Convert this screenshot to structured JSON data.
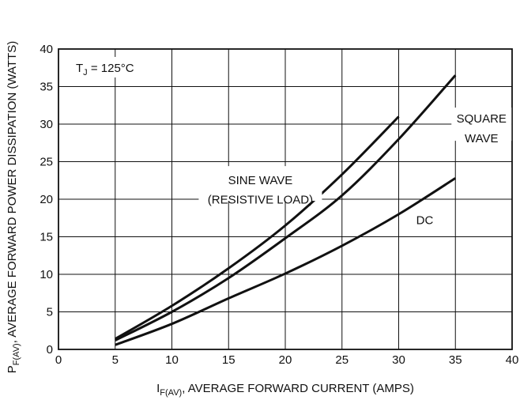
{
  "chart_data": {
    "type": "line",
    "title": "",
    "xlabel": {
      "base": "I",
      "sub": "F(AV)",
      "rest": ", AVERAGE FORWARD CURRENT (AMPS)"
    },
    "ylabel": {
      "base": "P",
      "sub": "F(AV)",
      "rest": ", AVERAGE FORWARD POWER DISSIPATION (WATTS)"
    },
    "xlim": [
      0,
      40
    ],
    "ylim": [
      0,
      40
    ],
    "xticks": [
      0,
      5,
      10,
      15,
      20,
      25,
      30,
      35,
      40
    ],
    "yticks": [
      0,
      5,
      10,
      15,
      20,
      25,
      30,
      35,
      40
    ],
    "grid": true,
    "condition": {
      "base": "T",
      "sub": "J",
      "rest": " = 125°C"
    },
    "series": [
      {
        "name": "SINE WAVE (RESISTIVE LOAD)",
        "x": [
          5,
          10,
          15,
          20,
          25,
          30
        ],
        "y": [
          1.4,
          5.8,
          10.8,
          16.5,
          23.3,
          31
        ]
      },
      {
        "name": "SQUARE WAVE",
        "x": [
          5,
          10,
          15,
          20,
          25,
          30,
          35
        ],
        "y": [
          1.2,
          5.0,
          9.5,
          14.8,
          20.5,
          28,
          36.5
        ]
      },
      {
        "name": "DC",
        "x": [
          5,
          10,
          15,
          20,
          25,
          30,
          35
        ],
        "y": [
          0.6,
          3.4,
          6.8,
          10.1,
          13.8,
          18,
          22.8
        ]
      }
    ],
    "annotations": {
      "sine_line1": "SINE WAVE",
      "sine_line2": "(RESISTIVE LOAD)",
      "square_line1": "SQUARE",
      "square_line2": "WAVE",
      "dc": "DC"
    }
  }
}
